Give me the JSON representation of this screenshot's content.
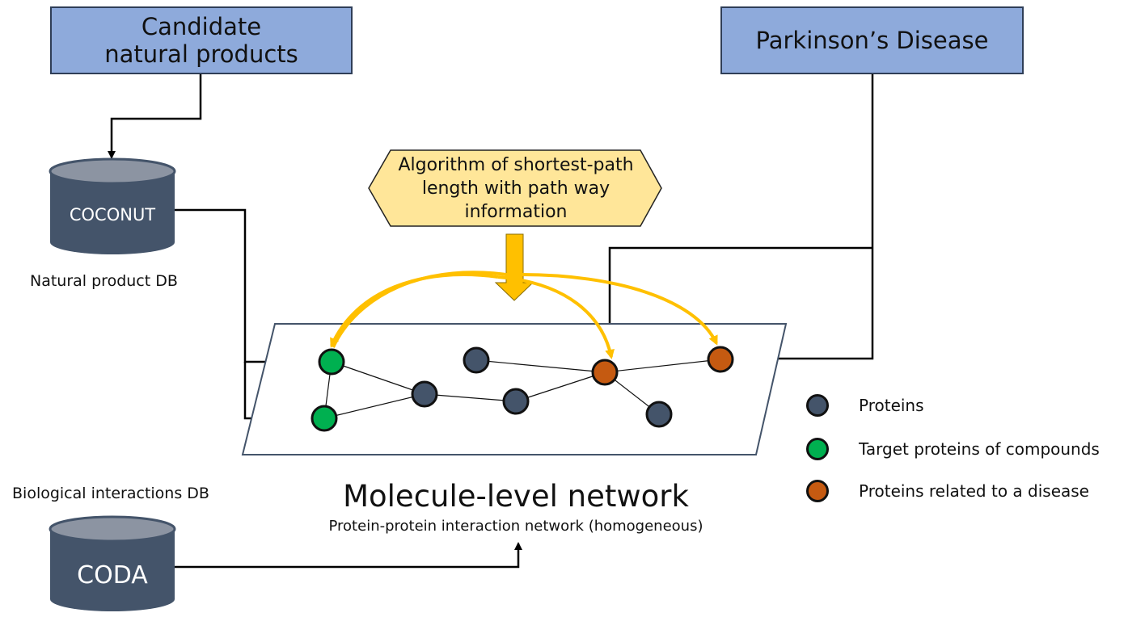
{
  "boxes": {
    "candidate": "Candidate natural products",
    "disease": "Parkinson’s Disease"
  },
  "databases": {
    "coconut": {
      "name": "COCONUT",
      "caption": "Natural product DB"
    },
    "coda": {
      "name": "CODA",
      "caption": "Biological interactions DB"
    }
  },
  "algorithm": "Algorithm of shortest-path length with path way information",
  "network": {
    "title": "Molecule-level network",
    "subtitle": "Protein-protein interaction network (homogeneous)"
  },
  "legend": [
    {
      "label": "Proteins",
      "color": "#44546a"
    },
    {
      "label": "Target proteins of compounds",
      "color": "#00b050"
    },
    {
      "label": "Proteins related to a disease",
      "color": "#c55a11"
    }
  ],
  "colors": {
    "box_fill": "#8eaadb",
    "cylinder": "#44546a",
    "algorithm_fill": "#ffe699",
    "arrow_gold": "#ffc000"
  }
}
